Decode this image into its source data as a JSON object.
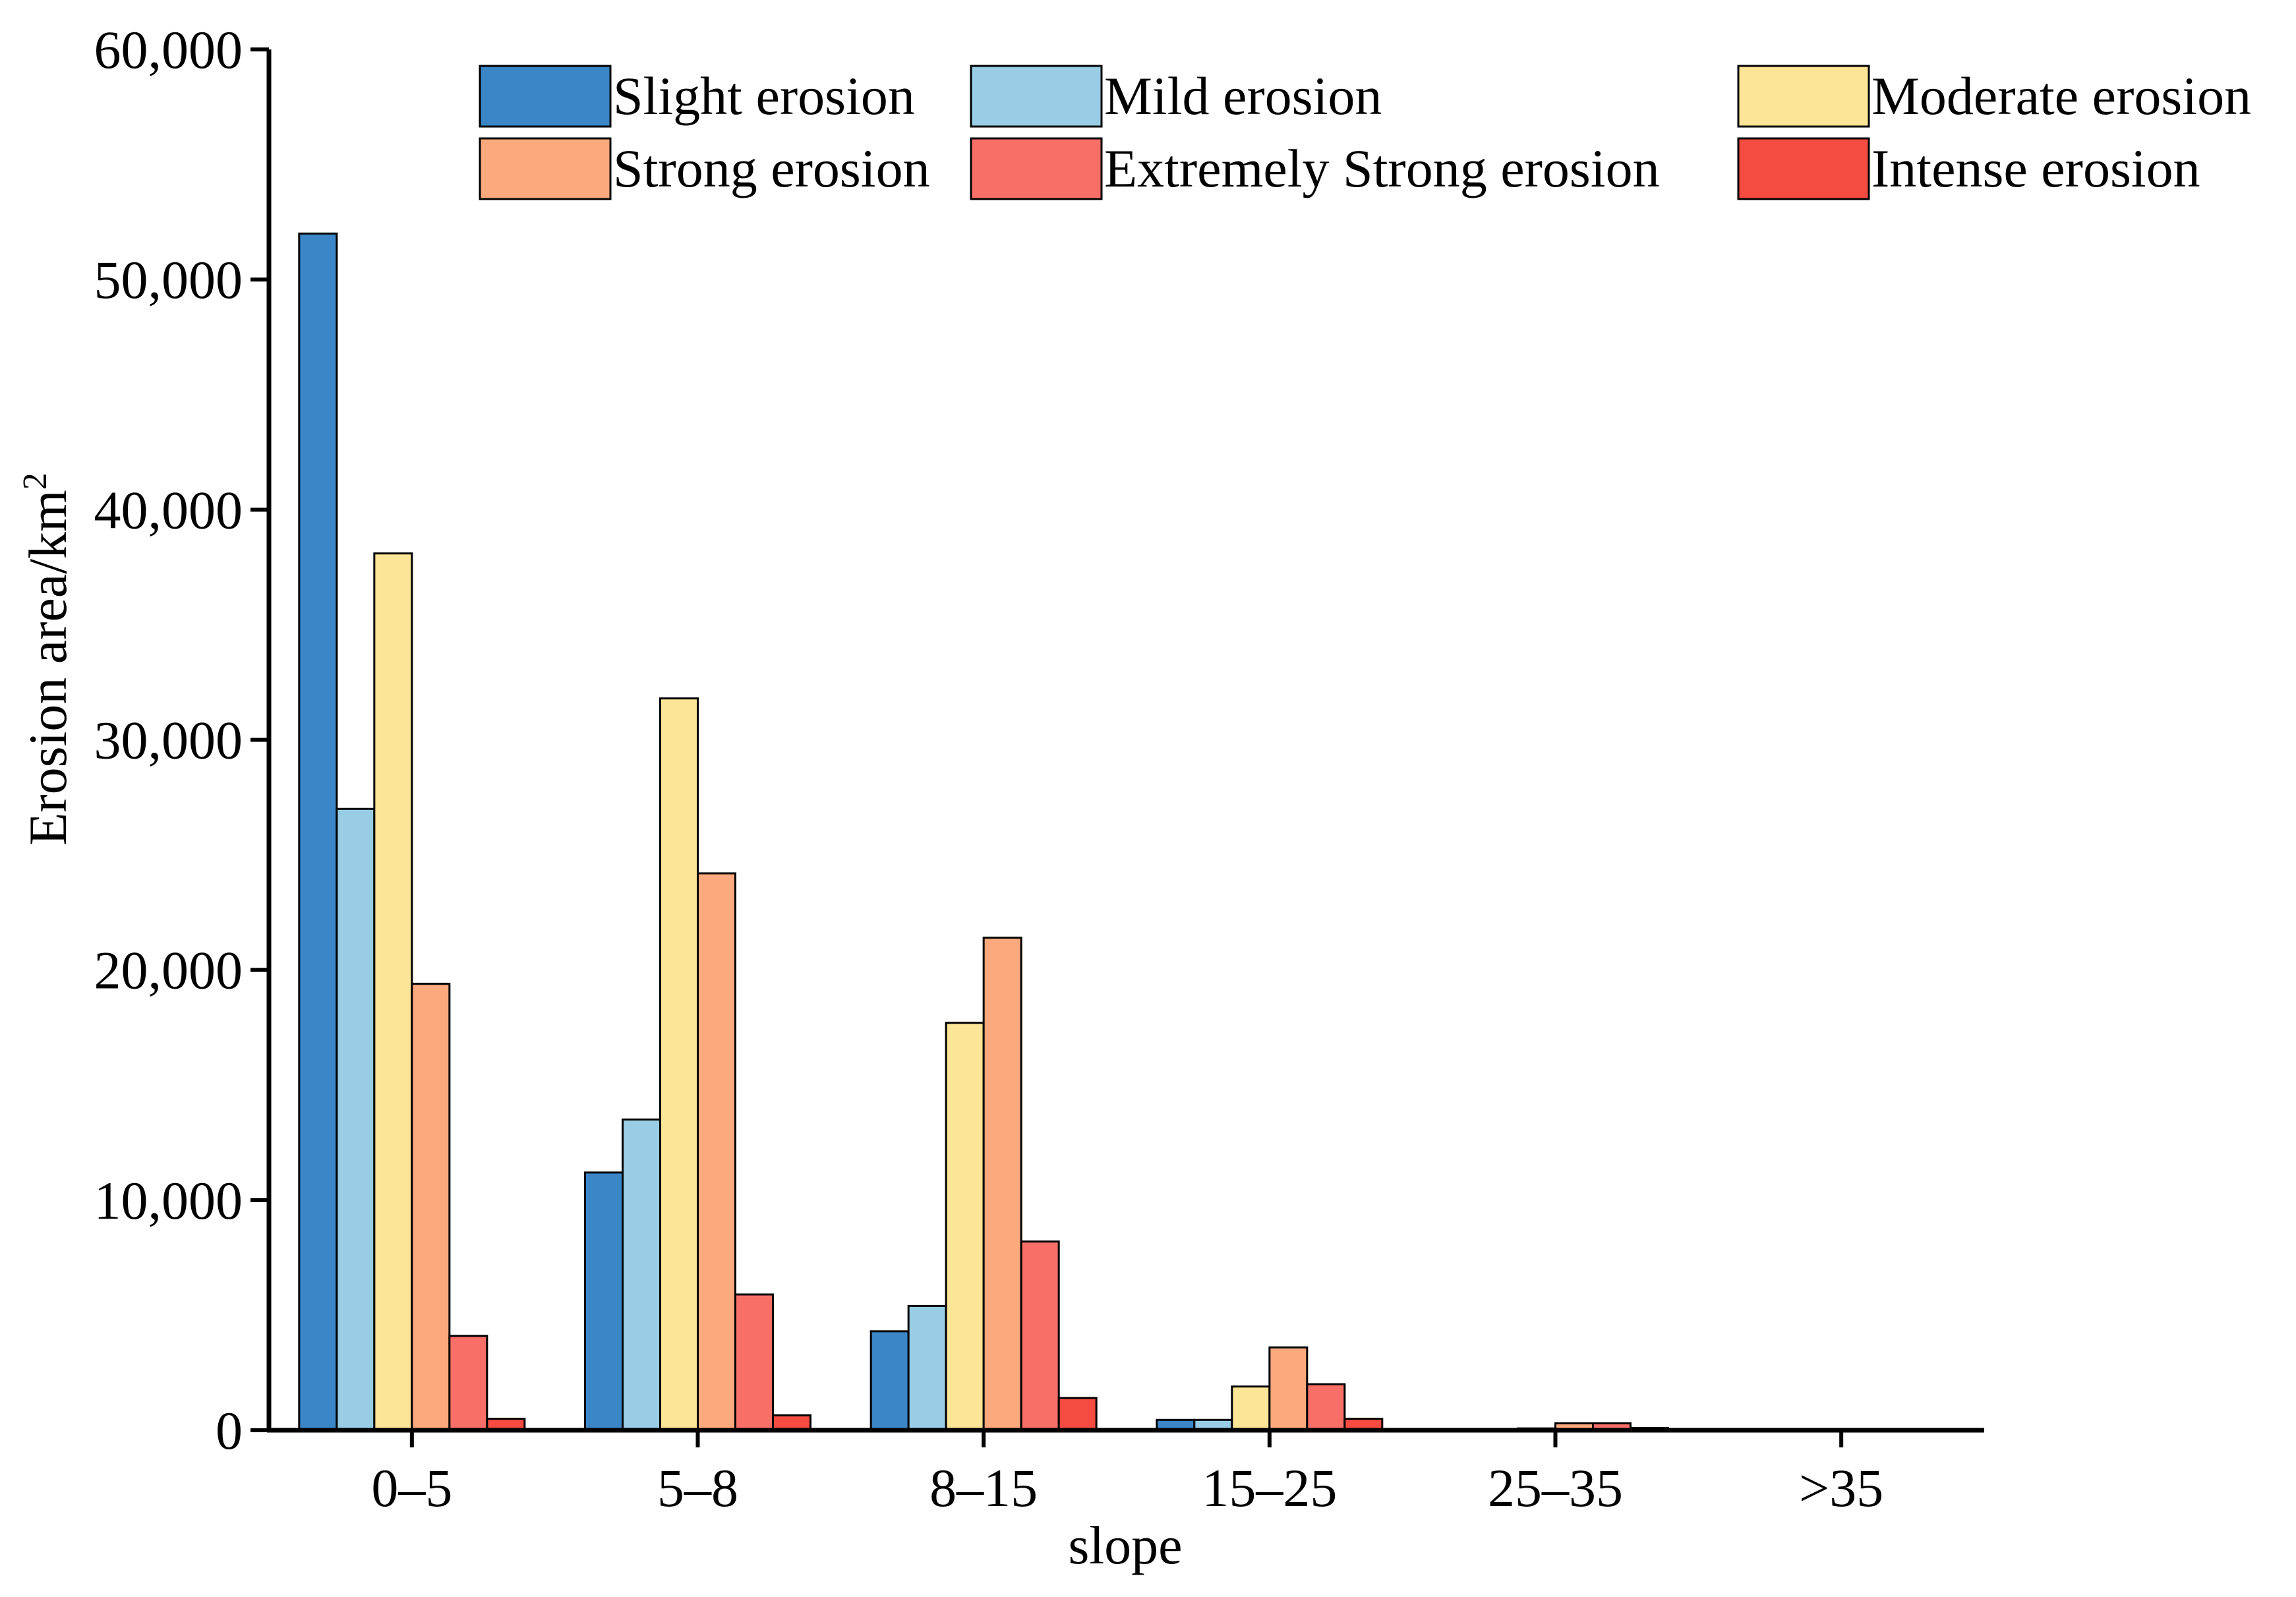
{
  "chart_data": {
    "type": "bar",
    "title": "",
    "xlabel": "slope",
    "ylabel": "Erosion area/km",
    "ylabel_superscript": "2",
    "categories": [
      "0–5",
      "5–8",
      "8–15",
      "15–25",
      "25–35",
      ">35"
    ],
    "ylim": [
      0,
      60000
    ],
    "yticks": [
      0,
      10000,
      20000,
      30000,
      40000,
      50000,
      60000
    ],
    "ytick_labels": [
      "0",
      "10,000",
      "20,000",
      "30,000",
      "40,000",
      "50,000",
      "60,000"
    ],
    "grid": false,
    "legend_position": "top",
    "series": [
      {
        "name": "Slight erosion",
        "color": "#3b86c6",
        "values": [
          52000,
          11200,
          4300,
          450,
          30,
          0
        ]
      },
      {
        "name": "Mild erosion",
        "color": "#99cde6",
        "values": [
          27000,
          13500,
          5400,
          450,
          30,
          0
        ]
      },
      {
        "name": "Moderate erosion",
        "color": "#fde598",
        "values": [
          38100,
          31800,
          17700,
          1900,
          80,
          20
        ]
      },
      {
        "name": "Strong erosion",
        "color": "#fca97e",
        "values": [
          19400,
          24200,
          21400,
          3600,
          300,
          40
        ]
      },
      {
        "name": "Extremely Strong erosion",
        "color": "#f86f68",
        "values": [
          4100,
          5900,
          8200,
          2000,
          300,
          40
        ]
      },
      {
        "name": "Intense erosion",
        "color": "#f54b41",
        "values": [
          500,
          650,
          1400,
          500,
          100,
          30
        ]
      }
    ]
  }
}
